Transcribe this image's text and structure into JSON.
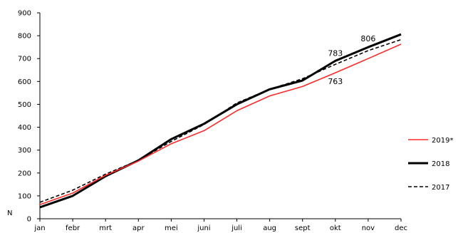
{
  "chart_data": {
    "type": "line",
    "xlabel": "",
    "ylabel": "N",
    "ylim": [
      0,
      900
    ],
    "yticks": [
      0,
      100,
      200,
      300,
      400,
      500,
      600,
      700,
      800,
      900
    ],
    "grid": false,
    "legend_position": "right",
    "categories": [
      "jan",
      "febr",
      "mrt",
      "apr",
      "mei",
      "juni",
      "juli",
      "aug",
      "sept",
      "okt",
      "nov",
      "dec"
    ],
    "series": [
      {
        "name": "2019*",
        "color": "#ff2a2a",
        "line_style": "solid",
        "values": [
          62,
          112,
          190,
          252,
          328,
          385,
          472,
          537,
          578,
          638,
          700,
          763
        ]
      },
      {
        "name": "2018",
        "color": "#000000",
        "line_style": "solid-thick",
        "values": [
          50,
          100,
          186,
          255,
          348,
          415,
          500,
          566,
          604,
          690,
          750,
          806
        ]
      },
      {
        "name": "2017",
        "color": "#000000",
        "line_style": "dashed",
        "values": [
          72,
          125,
          195,
          255,
          338,
          412,
          506,
          566,
          612,
          675,
          735,
          783
        ]
      }
    ],
    "annotations": [
      {
        "text": "806",
        "series": "2018",
        "category": "nov"
      },
      {
        "text": "783",
        "series": "2017",
        "category": "okt"
      },
      {
        "text": "763",
        "series": "2019*",
        "category": "okt"
      }
    ]
  }
}
